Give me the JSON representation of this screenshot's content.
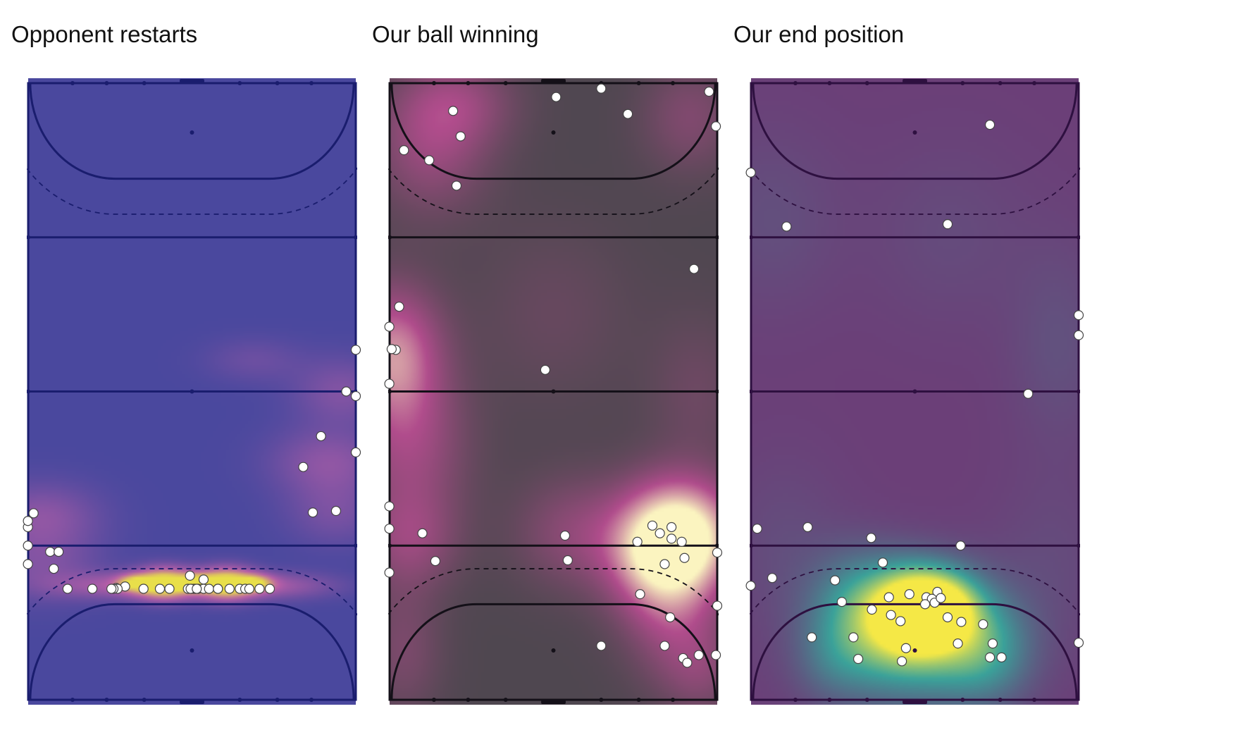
{
  "chart_data": [
    {
      "type": "scatter",
      "subtype": "heatmap-with-points",
      "title": "Opponent restarts",
      "colors": {
        "background": "#4a489e",
        "lines": "#1a1d6e",
        "heat_low": "#4a489e",
        "heat_mid": "#b85fa8",
        "heat_high": "#e8df4a",
        "point_fill": "#ffffff",
        "point_stroke": "#444444"
      },
      "points": [
        {
          "x": 0.79,
          "y": 24.2
        },
        {
          "x": -0.04,
          "y": 22.4
        },
        {
          "x": -0.04,
          "y": 20.0
        },
        {
          "x": 3.22,
          "y": 19.2
        },
        {
          "x": 4.46,
          "y": 19.2
        },
        {
          "x": 3.75,
          "y": 17.0
        },
        {
          "x": 46.6,
          "y": 40.0
        },
        {
          "x": 48.0,
          "y": 39.4
        },
        {
          "x": 48.0,
          "y": 32.1
        },
        {
          "x": -0.04,
          "y": 23.2
        },
        {
          "x": -0.04,
          "y": 17.6
        },
        {
          "x": 5.77,
          "y": 14.4
        },
        {
          "x": 16.9,
          "y": 14.4
        },
        {
          "x": 14.2,
          "y": 14.7
        },
        {
          "x": 19.3,
          "y": 14.4
        },
        {
          "x": 27.8,
          "y": 14.4
        },
        {
          "x": 31.0,
          "y": 14.4
        },
        {
          "x": 33.9,
          "y": 14.4
        },
        {
          "x": 35.4,
          "y": 14.4
        },
        {
          "x": 12.9,
          "y": 14.5
        },
        {
          "x": 9.4,
          "y": 14.4
        },
        {
          "x": 13.1,
          "y": 14.4
        },
        {
          "x": 12.5,
          "y": 14.4
        },
        {
          "x": 12.2,
          "y": 14.4
        },
        {
          "x": 23.7,
          "y": 16.1
        },
        {
          "x": 23.4,
          "y": 14.4
        },
        {
          "x": 23.9,
          "y": 14.4
        },
        {
          "x": 24.3,
          "y": 14.4
        },
        {
          "x": 24.5,
          "y": 14.4
        },
        {
          "x": 24.9,
          "y": 14.4
        },
        {
          "x": 25.7,
          "y": 15.6
        },
        {
          "x": 25.7,
          "y": 14.4
        },
        {
          "x": 26.5,
          "y": 14.4
        },
        {
          "x": 27.8,
          "y": 14.4
        },
        {
          "x": 29.5,
          "y": 14.4
        },
        {
          "x": 31.8,
          "y": 14.4
        },
        {
          "x": 32.4,
          "y": 14.4
        },
        {
          "x": 23.8,
          "y": 14.4
        },
        {
          "x": 20.7,
          "y": 14.4
        },
        {
          "x": 24.7,
          "y": 14.4
        },
        {
          "x": 40.3,
          "y": 30.2
        },
        {
          "x": 41.7,
          "y": 24.3
        },
        {
          "x": 42.9,
          "y": 34.2
        },
        {
          "x": 45.1,
          "y": 24.5
        },
        {
          "x": 48.0,
          "y": 45.4
        }
      ],
      "heat_blobs": [
        {
          "x": 20.0,
          "y": 15.5,
          "sx": 3.0,
          "sy": 1.4,
          "w": 1.0
        },
        {
          "x": 29.0,
          "y": 15.5,
          "sx": 3.0,
          "sy": 1.4,
          "w": 1.0
        },
        {
          "x": 24.7,
          "y": 15.6,
          "sx": 1.7,
          "sy": 0.7,
          "w": 0.6
        },
        {
          "x": 15.4,
          "y": 15.6,
          "sx": 1.7,
          "sy": 0.7,
          "w": 0.55
        },
        {
          "x": 33.5,
          "y": 15.6,
          "sx": 1.7,
          "sy": 0.7,
          "w": 0.5
        },
        {
          "x": 14.0,
          "y": 15.2,
          "sx": 7.0,
          "sy": 1.2,
          "w": 0.4
        },
        {
          "x": 35.0,
          "y": 15.2,
          "sx": 7.0,
          "sy": 1.2,
          "w": 0.4
        },
        {
          "x": 2.0,
          "y": 24.0,
          "sx": 6.0,
          "sy": 3.0,
          "w": 0.3
        },
        {
          "x": 2.0,
          "y": 17.5,
          "sx": 6.0,
          "sy": 3.0,
          "w": 0.22
        },
        {
          "x": 44.0,
          "y": 31.0,
          "sx": 6.0,
          "sy": 3.0,
          "w": 0.3
        },
        {
          "x": 46.0,
          "y": 40.0,
          "sx": 5.0,
          "sy": 3.0,
          "w": 0.25
        },
        {
          "x": 33.0,
          "y": 44.0,
          "sx": 5.0,
          "sy": 2.0,
          "w": 0.15
        },
        {
          "x": 45.0,
          "y": 24.5,
          "sx": 5.0,
          "sy": 3.0,
          "w": 0.2
        }
      ]
    },
    {
      "type": "scatter",
      "subtype": "heatmap-with-points",
      "title": "Our ball winning",
      "colors": {
        "background": "#4f4750",
        "lines": "#141018",
        "heat_low": "#4f4750",
        "heat_mid": "#b04c8c",
        "heat_high": "#fbf4c0",
        "point_fill": "#ffffff",
        "point_stroke": "#444444"
      },
      "points": [
        {
          "x": 24.4,
          "y": 78.2
        },
        {
          "x": 31.0,
          "y": 79.3
        },
        {
          "x": 34.9,
          "y": 76.0
        },
        {
          "x": 9.3,
          "y": 76.4
        },
        {
          "x": 10.4,
          "y": 73.1
        },
        {
          "x": 2.1,
          "y": 71.3
        },
        {
          "x": 5.8,
          "y": 70.0
        },
        {
          "x": 9.8,
          "y": 66.7
        },
        {
          "x": 44.6,
          "y": 55.9
        },
        {
          "x": 46.8,
          "y": 78.9
        },
        {
          "x": 47.8,
          "y": 74.4
        },
        {
          "x": 1.4,
          "y": 51.0
        },
        {
          "x": -0.04,
          "y": 48.4
        },
        {
          "x": 0.9,
          "y": 45.4
        },
        {
          "x": 0.3,
          "y": 45.5
        },
        {
          "x": -0.04,
          "y": 41.0
        },
        {
          "x": 22.8,
          "y": 42.8
        },
        {
          "x": -0.04,
          "y": 25.1
        },
        {
          "x": -0.04,
          "y": 22.2
        },
        {
          "x": 4.8,
          "y": 21.6
        },
        {
          "x": 6.7,
          "y": 18.0
        },
        {
          "x": -0.04,
          "y": 16.5
        },
        {
          "x": 48.0,
          "y": 19.1
        },
        {
          "x": 25.7,
          "y": 21.3
        },
        {
          "x": 26.1,
          "y": 18.1
        },
        {
          "x": 43.0,
          "y": 5.4
        },
        {
          "x": 45.3,
          "y": 5.8
        },
        {
          "x": 36.3,
          "y": 20.5
        },
        {
          "x": 36.7,
          "y": 13.7
        },
        {
          "x": 43.6,
          "y": 4.8
        },
        {
          "x": 41.1,
          "y": 10.7
        },
        {
          "x": 43.2,
          "y": 18.4
        },
        {
          "x": 42.8,
          "y": 20.5
        },
        {
          "x": 41.3,
          "y": 20.9
        },
        {
          "x": 41.3,
          "y": 22.4
        },
        {
          "x": 39.6,
          "y": 21.6
        },
        {
          "x": 38.5,
          "y": 22.6
        },
        {
          "x": 40.3,
          "y": 7.0
        },
        {
          "x": 40.3,
          "y": 17.6
        },
        {
          "x": 48.0,
          "y": 12.2
        },
        {
          "x": 31.0,
          "y": 7.0
        },
        {
          "x": 47.8,
          "y": 5.8
        }
      ],
      "heat_blobs": [
        {
          "x": 43.5,
          "y": 21.5,
          "sx": 5.5,
          "sy": 5.0,
          "w": 1.0
        },
        {
          "x": 38.0,
          "y": 19.5,
          "sx": 5.0,
          "sy": 5.5,
          "w": 0.55
        },
        {
          "x": 42.0,
          "y": 11.0,
          "sx": 5.0,
          "sy": 6.0,
          "w": 0.35
        },
        {
          "x": 27.0,
          "y": 22.0,
          "sx": 6.0,
          "sy": 5.0,
          "w": 0.3
        },
        {
          "x": 0.5,
          "y": 45.0,
          "sx": 5.0,
          "sy": 6.0,
          "w": 0.65
        },
        {
          "x": 3.0,
          "y": 33.0,
          "sx": 6.0,
          "sy": 7.0,
          "w": 0.38
        },
        {
          "x": 3.0,
          "y": 21.0,
          "sx": 5.0,
          "sy": 4.5,
          "w": 0.32
        },
        {
          "x": 6.0,
          "y": 71.0,
          "sx": 6.0,
          "sy": 6.0,
          "w": 0.35
        },
        {
          "x": 10.0,
          "y": 77.0,
          "sx": 6.0,
          "sy": 4.0,
          "w": 0.3
        },
        {
          "x": 44.0,
          "y": 75.0,
          "sx": 5.0,
          "sy": 5.0,
          "w": 0.25
        },
        {
          "x": 24.0,
          "y": 50.0,
          "sx": 8.0,
          "sy": 8.0,
          "w": 0.12
        },
        {
          "x": 45.0,
          "y": 40.0,
          "sx": 5.0,
          "sy": 7.0,
          "w": 0.15
        },
        {
          "x": 2.0,
          "y": 7.0,
          "sx": 4.0,
          "sy": 6.0,
          "w": 0.22
        },
        {
          "x": 46.0,
          "y": 4.0,
          "sx": 4.0,
          "sy": 4.0,
          "w": 0.2
        }
      ]
    },
    {
      "type": "scatter",
      "subtype": "heatmap-with-points",
      "title": "Our end position",
      "colors": {
        "background": "#6b3f78",
        "lines": "#2e1040",
        "heat_low": "#6b3f78",
        "heat_mid": "#3aa29a",
        "heat_high": "#f5e846",
        "point_fill": "#ffffff",
        "point_stroke": "#444444"
      },
      "points": [
        {
          "x": 35.0,
          "y": 74.6
        },
        {
          "x": -0.04,
          "y": 68.4
        },
        {
          "x": 5.2,
          "y": 61.4
        },
        {
          "x": 28.8,
          "y": 61.7
        },
        {
          "x": 48.0,
          "y": 49.9
        },
        {
          "x": 48.0,
          "y": 47.3
        },
        {
          "x": 40.6,
          "y": 39.7
        },
        {
          "x": 0.9,
          "y": 22.2
        },
        {
          "x": 8.3,
          "y": 22.4
        },
        {
          "x": 17.6,
          "y": 21.0
        },
        {
          "x": 30.7,
          "y": 20.0
        },
        {
          "x": 19.3,
          "y": 17.8
        },
        {
          "x": 3.1,
          "y": 15.8
        },
        {
          "x": -0.04,
          "y": 14.8
        },
        {
          "x": 12.3,
          "y": 15.5
        },
        {
          "x": 13.3,
          "y": 12.7
        },
        {
          "x": 20.2,
          "y": 13.3
        },
        {
          "x": 17.7,
          "y": 11.7
        },
        {
          "x": 20.5,
          "y": 11.0
        },
        {
          "x": 21.9,
          "y": 10.2
        },
        {
          "x": 27.3,
          "y": 14.0
        },
        {
          "x": 25.7,
          "y": 13.3
        },
        {
          "x": 26.5,
          "y": 13.1
        },
        {
          "x": 26.9,
          "y": 12.6
        },
        {
          "x": 27.8,
          "y": 13.2
        },
        {
          "x": 28.8,
          "y": 10.7
        },
        {
          "x": 30.8,
          "y": 10.1
        },
        {
          "x": 34.0,
          "y": 9.8
        },
        {
          "x": 8.9,
          "y": 8.1
        },
        {
          "x": 15.0,
          "y": 8.1
        },
        {
          "x": 22.7,
          "y": 6.7
        },
        {
          "x": 15.7,
          "y": 5.3
        },
        {
          "x": 22.1,
          "y": 5.0
        },
        {
          "x": 30.3,
          "y": 7.3
        },
        {
          "x": 35.4,
          "y": 7.3
        },
        {
          "x": 35.0,
          "y": 5.5
        },
        {
          "x": 36.7,
          "y": 5.5
        },
        {
          "x": 48.0,
          "y": 7.4
        },
        {
          "x": 25.5,
          "y": 12.4
        },
        {
          "x": 23.2,
          "y": 13.7
        }
      ],
      "heat_blobs": [
        {
          "x": 24.0,
          "y": 12.0,
          "sx": 4.0,
          "sy": 3.5,
          "w": 1.0
        },
        {
          "x": 28.5,
          "y": 12.5,
          "sx": 3.5,
          "sy": 3.0,
          "w": 0.55
        },
        {
          "x": 20.0,
          "y": 9.0,
          "sx": 5.5,
          "sy": 5.0,
          "w": 0.4
        },
        {
          "x": 30.0,
          "y": 9.0,
          "sx": 5.5,
          "sy": 5.0,
          "w": 0.4
        },
        {
          "x": 16.0,
          "y": 13.5,
          "sx": 5.0,
          "sy": 4.5,
          "w": 0.3
        },
        {
          "x": 24.0,
          "y": 8.0,
          "sx": 9.0,
          "sy": 6.0,
          "w": 0.22
        },
        {
          "x": 35.0,
          "y": 6.5,
          "sx": 4.5,
          "sy": 4.5,
          "w": 0.25
        },
        {
          "x": 12.0,
          "y": 6.0,
          "sx": 4.0,
          "sy": 4.0,
          "w": 0.18
        },
        {
          "x": 45.0,
          "y": 46.0,
          "sx": 5.0,
          "sy": 9.0,
          "w": 0.09
        },
        {
          "x": 3.0,
          "y": 62.0,
          "sx": 7.0,
          "sy": 8.0,
          "w": 0.08
        },
        {
          "x": 29.0,
          "y": 60.0,
          "sx": 8.0,
          "sy": 8.0,
          "w": 0.06
        },
        {
          "x": 5.0,
          "y": 20.0,
          "sx": 6.0,
          "sy": 8.0,
          "w": 0.07
        },
        {
          "x": 44.0,
          "y": 18.0,
          "sx": 6.0,
          "sy": 8.0,
          "w": 0.06
        }
      ]
    }
  ]
}
